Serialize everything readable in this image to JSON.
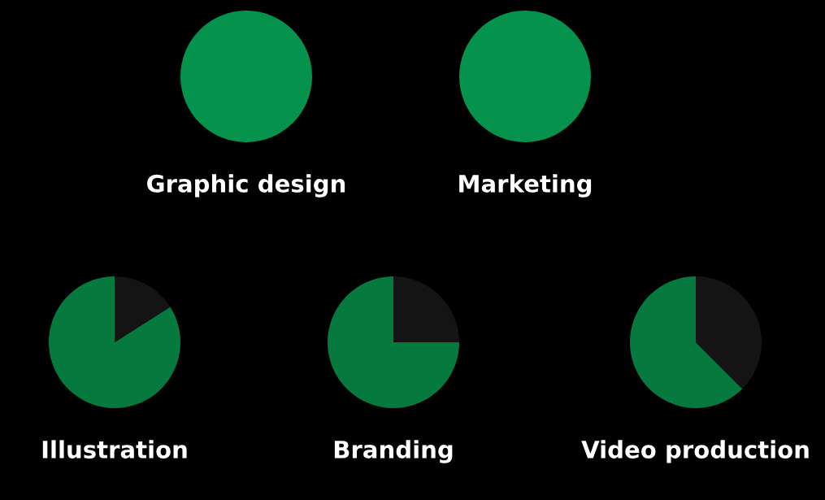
{
  "chart_data": [
    {
      "type": "pie",
      "title": "Graphic design",
      "categories": [
        null,
        null
      ],
      "values": [
        100,
        0
      ],
      "colors": [
        "#05924d",
        "#141414"
      ]
    },
    {
      "type": "pie",
      "title": "Marketing",
      "categories": [
        null,
        null
      ],
      "values": [
        100,
        0
      ],
      "colors": [
        "#05924d",
        "#141414"
      ]
    },
    {
      "type": "pie",
      "title": "Illustration",
      "categories": [
        null,
        null
      ],
      "values": [
        84,
        16
      ],
      "colors": [
        "#067a3e",
        "#141414"
      ]
    },
    {
      "type": "pie",
      "title": "Branding",
      "categories": [
        null,
        null
      ],
      "values": [
        75,
        25
      ],
      "colors": [
        "#067a3e",
        "#141414"
      ]
    },
    {
      "type": "pie",
      "title": "Video production",
      "categories": [
        null,
        null
      ],
      "values": [
        62.5,
        37.5
      ],
      "colors": [
        "#067a3e",
        "#141414"
      ]
    }
  ]
}
